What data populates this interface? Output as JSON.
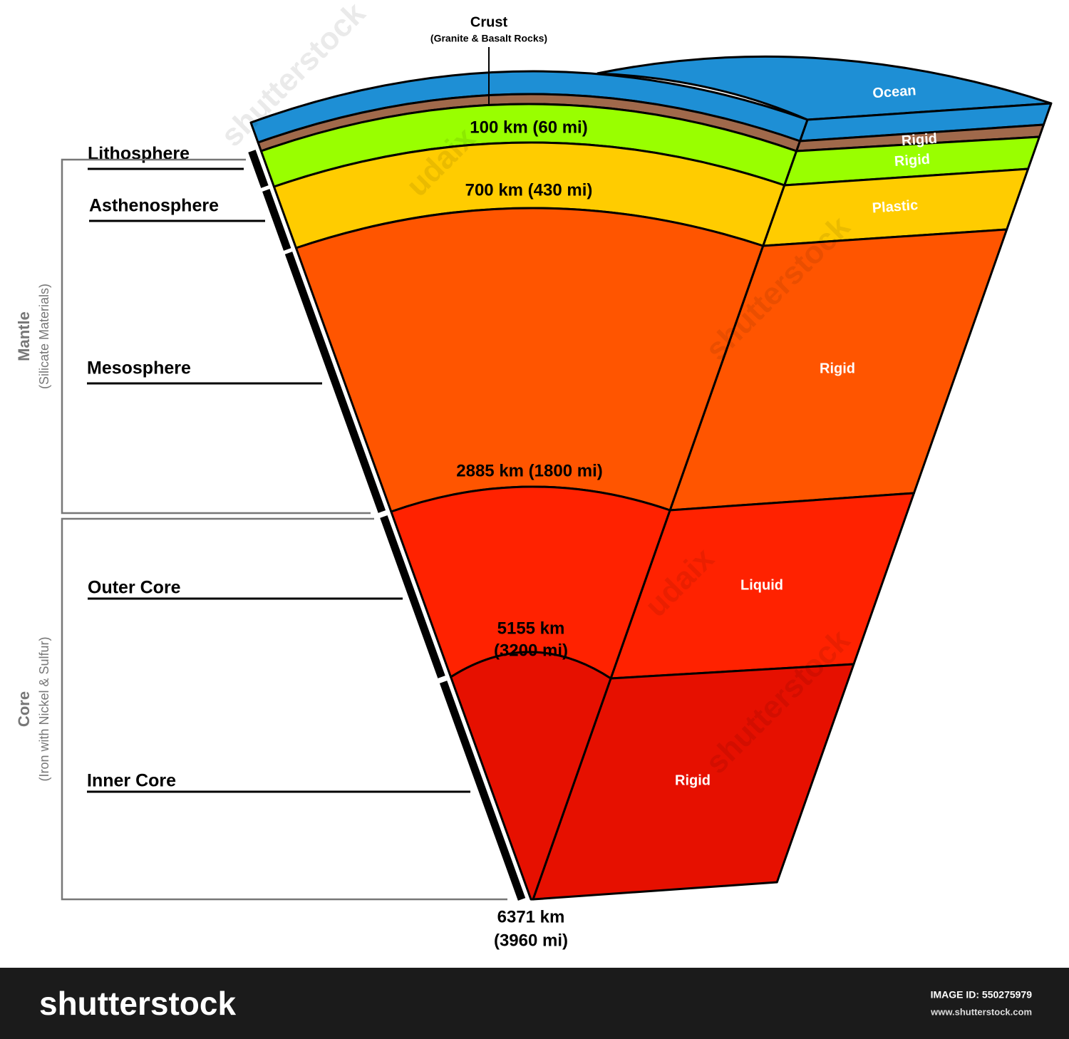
{
  "crust": {
    "label": "Crust",
    "sublabel": "(Granite & Basalt Rocks)"
  },
  "layers": [
    {
      "label": "Lithosphere"
    },
    {
      "label": "Asthenosphere"
    },
    {
      "label": "Mesosphere"
    },
    {
      "label": "Outer Core"
    },
    {
      "label": "Inner Core"
    }
  ],
  "groups": [
    {
      "label": "Mantle",
      "sublabel": "(Silicate Materials)"
    },
    {
      "label": "Core",
      "sublabel": "(Iron with Nickel & Sulfur)"
    }
  ],
  "depths": [
    {
      "lines": [
        "100 km (60 mi)"
      ]
    },
    {
      "lines": [
        "700 km (430 mi)"
      ]
    },
    {
      "lines": [
        "2885 km (1800 mi)"
      ]
    },
    {
      "lines": [
        "5155 km",
        "(3200 mi)"
      ]
    },
    {
      "lines": [
        "6371 km",
        "(3960 mi)"
      ]
    }
  ],
  "states": [
    "Ocean",
    "Rigid",
    "Rigid",
    "Plastic",
    "Rigid",
    "Liquid",
    "Rigid"
  ],
  "watermarks": [
    "shutterstock",
    "udaix"
  ],
  "footer": {
    "logo": "shutterstock",
    "image_id": "IMAGE ID: 550275979",
    "website": "www.shutterstock.com"
  }
}
